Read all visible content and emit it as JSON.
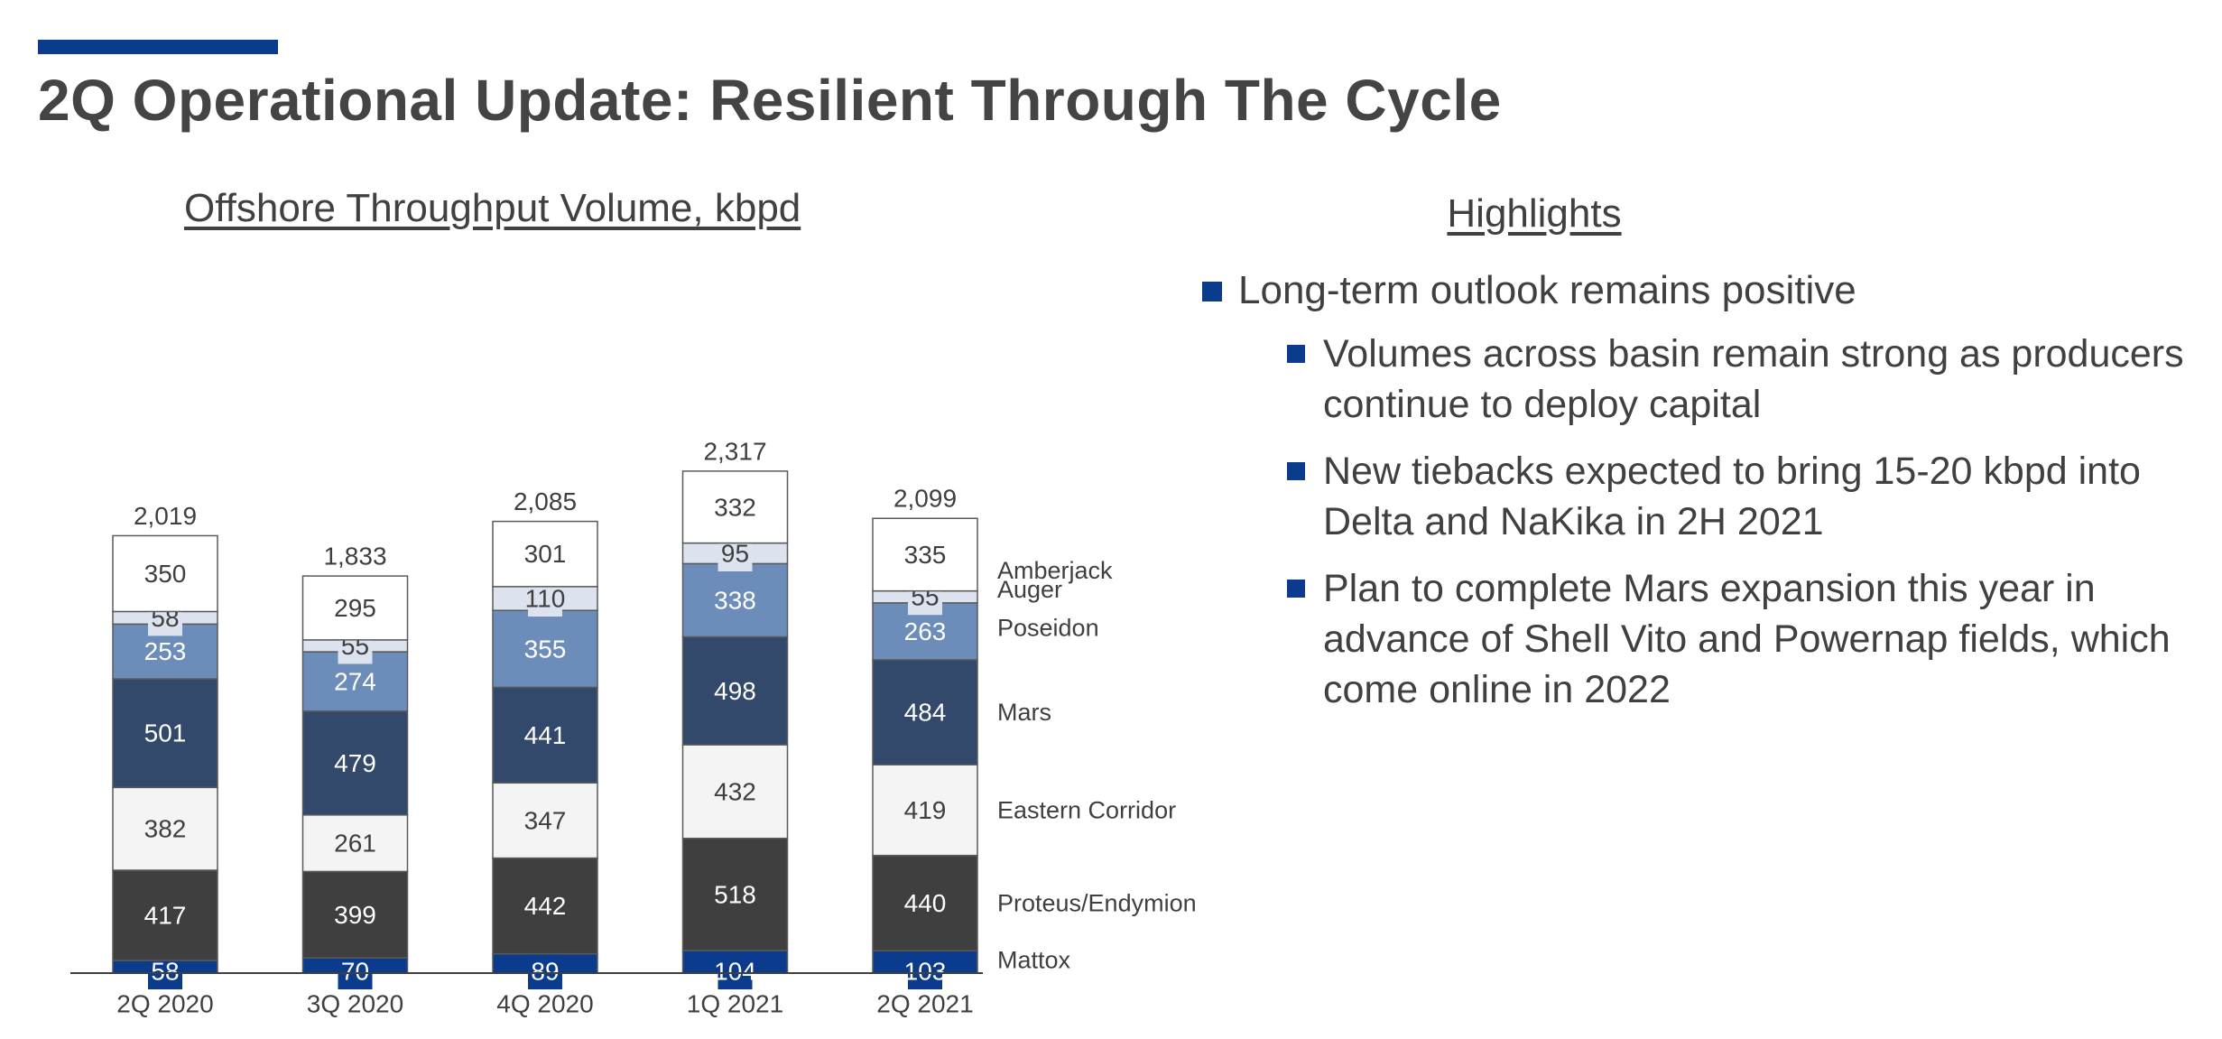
{
  "page": {
    "title": "2Q Operational Update: Resilient Through The Cycle"
  },
  "highlights": {
    "title": "Highlights",
    "main": "Long-term outlook remains positive",
    "items": [
      "Volumes across basin remain strong as producers continue to deploy capital",
      "New tiebacks expected to bring 15-20 kbpd into Delta and NaKika in 2H 2021",
      "Plan to complete Mars expansion this year in advance of Shell Vito and Powernap fields, which come online in 2022"
    ]
  },
  "chart_data": {
    "type": "bar",
    "stacked": true,
    "title": "Offshore Throughput Volume, kbpd",
    "categories": [
      "2Q 2020",
      "3Q 2020",
      "4Q 2020",
      "1Q 2021",
      "2Q 2021"
    ],
    "totals": [
      "2,019",
      "1,833",
      "2,085",
      "2,317",
      "2,099"
    ],
    "legend_placement": "right",
    "series": [
      {
        "name": "Mattox",
        "values": [
          58,
          70,
          89,
          104,
          103
        ],
        "color": "#0b3b8c",
        "label_color": "#ffffff"
      },
      {
        "name": "Proteus/Endymion",
        "values": [
          417,
          399,
          442,
          518,
          440
        ],
        "color": "#3f3f3f",
        "label_color": "#ffffff"
      },
      {
        "name": "Eastern Corridor",
        "values": [
          382,
          261,
          347,
          432,
          419
        ],
        "color": "#f4f4f4",
        "label_color": "#3f3f3f"
      },
      {
        "name": "Mars",
        "values": [
          501,
          479,
          441,
          498,
          484
        ],
        "color": "#33496b",
        "label_color": "#ffffff"
      },
      {
        "name": "Poseidon",
        "values": [
          253,
          274,
          355,
          338,
          263
        ],
        "color": "#6c8dba",
        "label_color": "#ffffff"
      },
      {
        "name": "Auger",
        "values": [
          58,
          55,
          110,
          95,
          55
        ],
        "color": "#dde3ee",
        "label_color": "#3f3f3f"
      },
      {
        "name": "Amberjack",
        "values": [
          350,
          295,
          301,
          332,
          335
        ],
        "color": "#ffffff",
        "label_color": "#3f3f3f"
      }
    ]
  }
}
